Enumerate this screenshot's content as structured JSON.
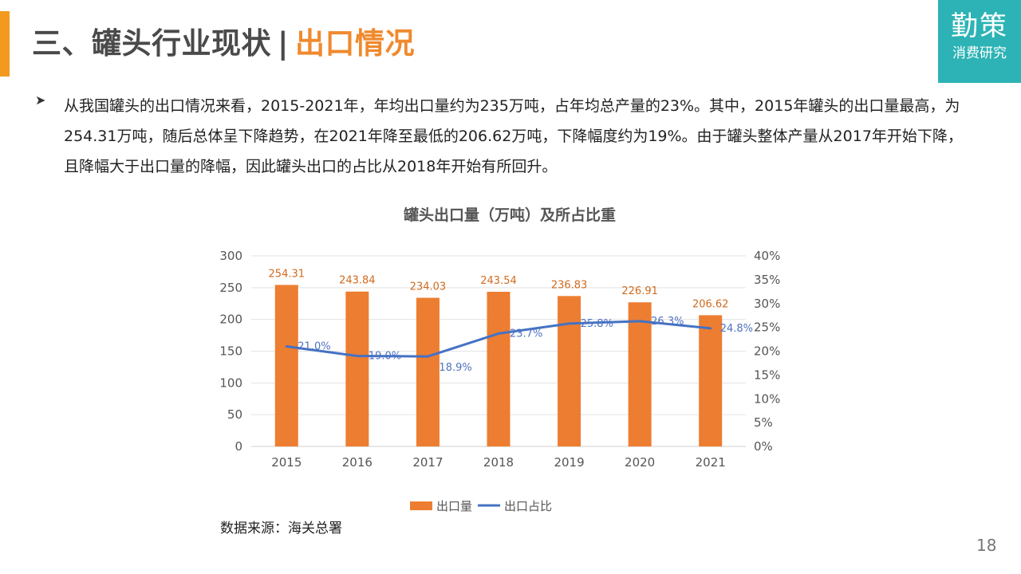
{
  "header": {
    "title_main": "三、罐头行业现状",
    "separator": "|",
    "title_sub": "出口情况",
    "accent_color": "#f39a1e"
  },
  "logo": {
    "main": "勤策",
    "sub": "消费研究",
    "bg_color": "#2db3b5"
  },
  "body": {
    "bullet_icon": "arrow-bullet-icon",
    "paragraph": "从我国罐头的出口情况来看，2015-2021年，年均出口量约为235万吨，占年均总产量的23%。其中，2015年罐头的出口量最高，为254.31万吨，随后总体呈下降趋势，在2021年降至最低的206.62万吨，下降幅度约为19%。由于罐头整体产量从2017年开始下降，且降幅大于出口量的降幅，因此罐头出口的占比从2018年开始有所回升。"
  },
  "chart_data": {
    "type": "bar",
    "title": "罐头出口量（万吨）及所占比重",
    "categories": [
      "2015",
      "2016",
      "2017",
      "2018",
      "2019",
      "2020",
      "2021"
    ],
    "series": [
      {
        "name": "出口量",
        "type": "bar",
        "axis": "left",
        "color": "#ed7d31",
        "values": [
          254.31,
          243.84,
          234.03,
          243.54,
          236.83,
          226.91,
          206.62
        ],
        "labels": [
          "254.31",
          "243.84",
          "234.03",
          "243.54",
          "236.83",
          "226.91",
          "206.62"
        ]
      },
      {
        "name": "出口占比",
        "type": "line",
        "axis": "right",
        "color": "#4472c4",
        "values": [
          21.0,
          19.0,
          18.9,
          23.7,
          25.8,
          26.3,
          24.8
        ],
        "labels": [
          "21.0%",
          "19.0%",
          "18.9%",
          "23.7%",
          "25.8%",
          "26.3%",
          "24.8%"
        ]
      }
    ],
    "y_left": {
      "min": 0,
      "max": 300,
      "ticks": [
        "0",
        "50",
        "100",
        "150",
        "200",
        "250",
        "300"
      ]
    },
    "y_right": {
      "min": 0,
      "max": 40,
      "ticks": [
        "0%",
        "5%",
        "10%",
        "15%",
        "20%",
        "25%",
        "30%",
        "35%",
        "40%"
      ]
    },
    "grid": true,
    "legend_position": "bottom"
  },
  "footer": {
    "source": "数据来源：海关总署",
    "page_number": "18"
  }
}
